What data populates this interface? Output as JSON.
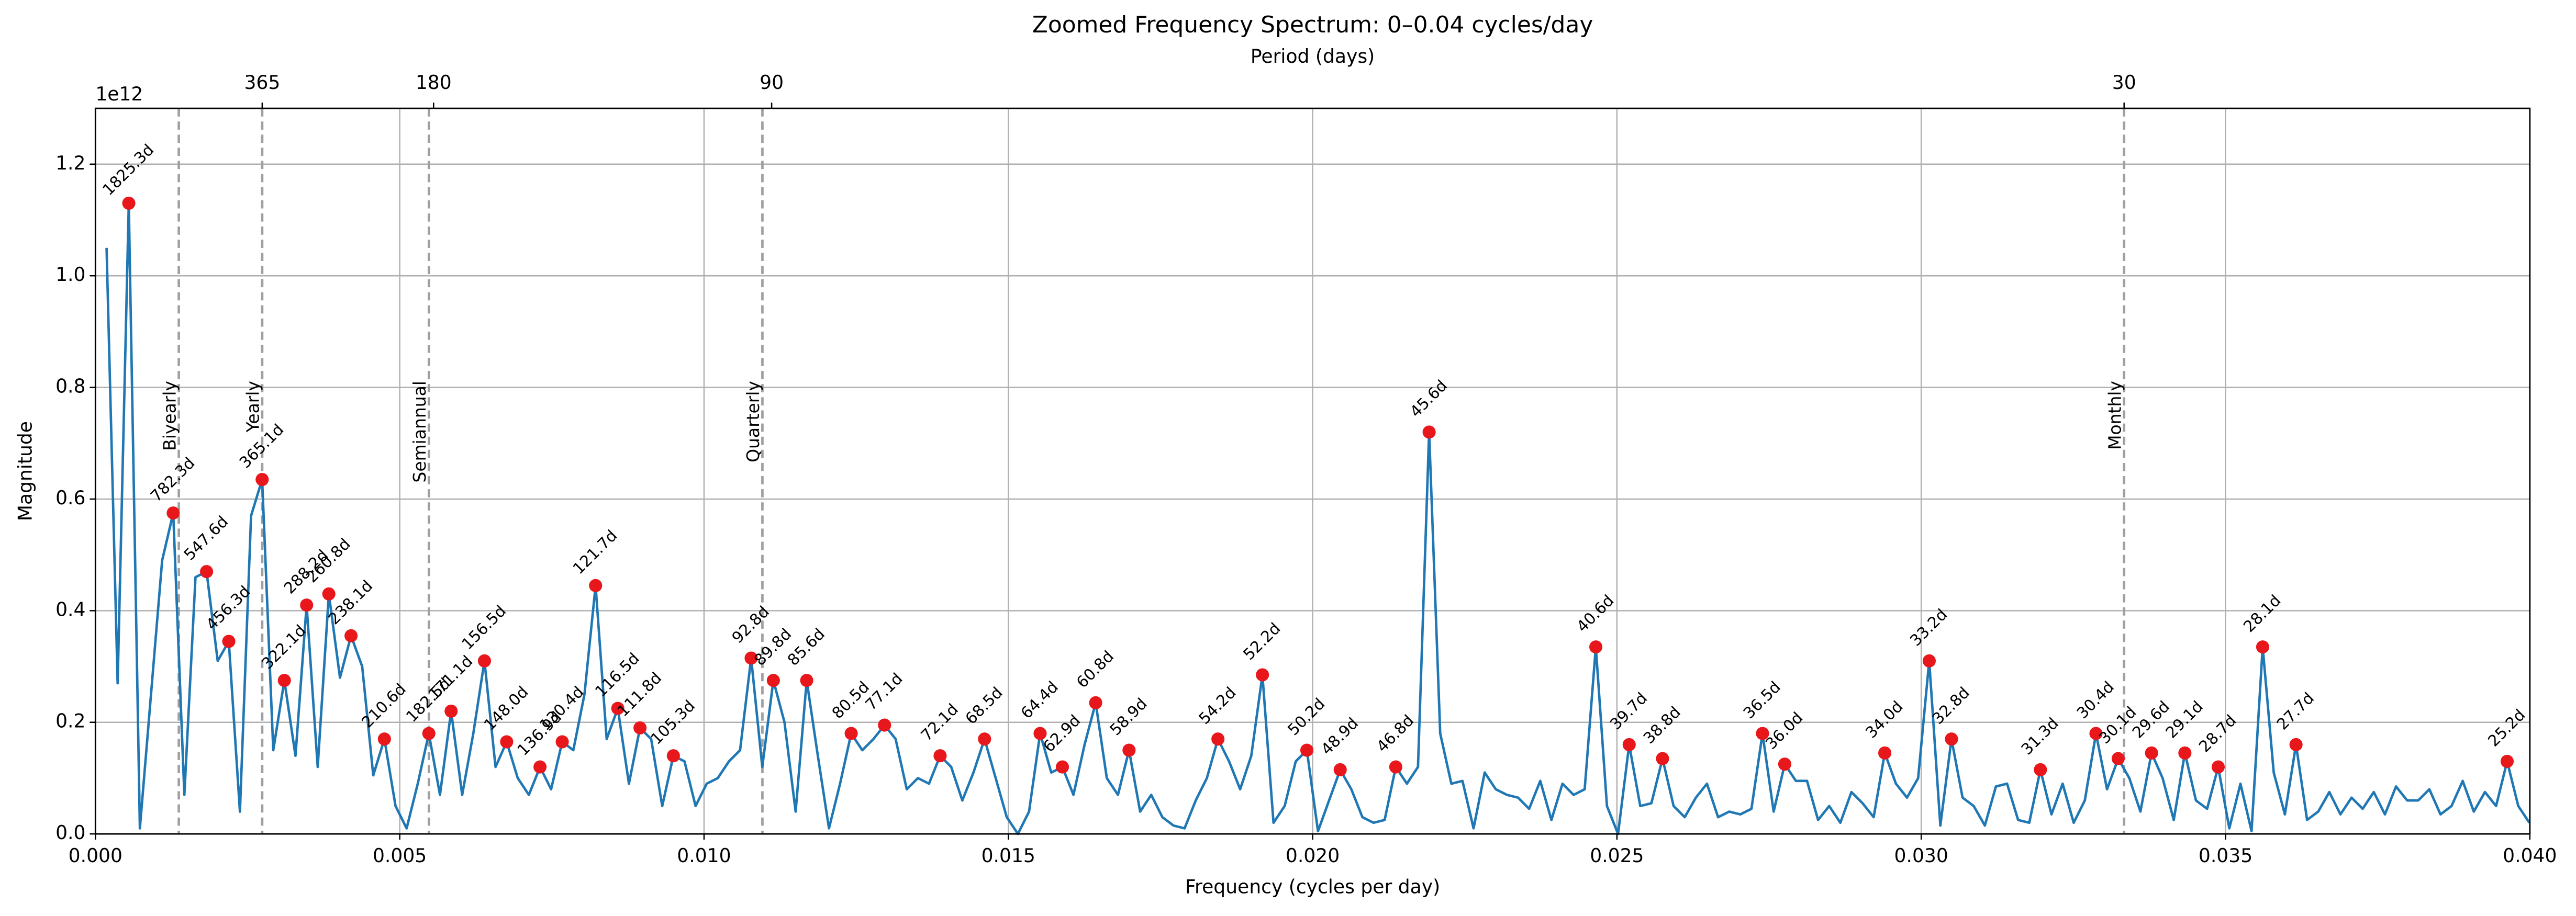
{
  "chart_data": {
    "type": "line",
    "title": "Zoomed Frequency Spectrum: 0–0.04 cycles/day",
    "x_label": "Frequency (cycles per day)",
    "y_label": "Magnitude",
    "x2_label": "Period (days)",
    "offset_label": "1e12",
    "color": "#1f77b4",
    "grid": true,
    "xlim": [
      0,
      0.04
    ],
    "ylim": [
      0,
      1.3
    ],
    "xticks": [
      {
        "value": 0,
        "label": "0.000"
      },
      {
        "value": 0.005,
        "label": "0.005"
      },
      {
        "value": 0.01,
        "label": "0.010"
      },
      {
        "value": 0.015,
        "label": "0.015"
      },
      {
        "value": 0.02,
        "label": "0.020"
      },
      {
        "value": 0.025,
        "label": "0.025"
      },
      {
        "value": 0.03,
        "label": "0.030"
      },
      {
        "value": 0.035,
        "label": "0.035"
      },
      {
        "value": 0.04,
        "label": "0.040"
      }
    ],
    "yticks": [
      {
        "value": 0,
        "label": "0.0"
      },
      {
        "value": 0.2,
        "label": "0.2"
      },
      {
        "value": 0.4,
        "label": "0.4"
      },
      {
        "value": 0.6,
        "label": "0.6"
      },
      {
        "value": 0.8,
        "label": "0.8"
      },
      {
        "value": 1.0,
        "label": "1.0"
      },
      {
        "value": 1.2,
        "label": "1.2"
      }
    ],
    "x2ticks": [
      {
        "value": 0.00274,
        "label": "365"
      },
      {
        "value": 0.005556,
        "label": "180"
      },
      {
        "value": 0.011111,
        "label": "90"
      },
      {
        "value": 0.033333,
        "label": "30"
      }
    ],
    "reference_lines": [
      {
        "x": 0.00137,
        "label": "Biyearly"
      },
      {
        "x": 0.00274,
        "label": "Yearly"
      },
      {
        "x": 0.005479,
        "label": "Semiannual"
      },
      {
        "x": 0.010959,
        "label": "Quarterly"
      },
      {
        "x": 0.033333,
        "label": "Monthly"
      }
    ],
    "x": [
      0.000183,
      0.000365,
      0.000548,
      0.00073,
      0.000913,
      0.001096,
      0.001278,
      0.001461,
      0.001644,
      0.001826,
      0.002009,
      0.002191,
      0.002374,
      0.002557,
      0.002739,
      0.002922,
      0.003104,
      0.003287,
      0.00347,
      0.003652,
      0.003835,
      0.004018,
      0.0042,
      0.004383,
      0.004565,
      0.004748,
      0.004931,
      0.005113,
      0.005296,
      0.005478,
      0.005661,
      0.005844,
      0.006026,
      0.006209,
      0.006392,
      0.006574,
      0.006757,
      0.006939,
      0.007122,
      0.007305,
      0.007487,
      0.00767,
      0.007852,
      0.008035,
      0.008218,
      0.0084,
      0.008583,
      0.008766,
      0.008948,
      0.009131,
      0.009313,
      0.009496,
      0.009679,
      0.009861,
      0.010044,
      0.010226,
      0.010409,
      0.010592,
      0.010774,
      0.010957,
      0.011139,
      0.011322,
      0.011505,
      0.011687,
      0.01187,
      0.012053,
      0.012235,
      0.012418,
      0.0126,
      0.012783,
      0.012966,
      0.013148,
      0.013331,
      0.013514,
      0.013696,
      0.013879,
      0.014061,
      0.014244,
      0.014427,
      0.014609,
      0.014792,
      0.014974,
      0.015157,
      0.01534,
      0.015522,
      0.015705,
      0.015888,
      0.01607,
      0.016253,
      0.016435,
      0.016618,
      0.016801,
      0.016983,
      0.017166,
      0.017348,
      0.017531,
      0.017714,
      0.017896,
      0.018079,
      0.018262,
      0.018444,
      0.018627,
      0.018809,
      0.018992,
      0.019175,
      0.019357,
      0.01954,
      0.019722,
      0.019905,
      0.020088,
      0.02027,
      0.020453,
      0.020636,
      0.020818,
      0.021001,
      0.021183,
      0.021366,
      0.021549,
      0.021731,
      0.021914,
      0.022096,
      0.022279,
      0.022462,
      0.022644,
      0.022827,
      0.023009,
      0.023192,
      0.023375,
      0.023557,
      0.02374,
      0.023923,
      0.024105,
      0.024288,
      0.02447,
      0.024653,
      0.024836,
      0.025018,
      0.025201,
      0.025383,
      0.025566,
      0.025749,
      0.025931,
      0.026114,
      0.026297,
      0.026479,
      0.026662,
      0.026844,
      0.027027,
      0.02721,
      0.027392,
      0.027575,
      0.027757,
      0.02794,
      0.028123,
      0.028305,
      0.028488,
      0.028671,
      0.028853,
      0.029036,
      0.029218,
      0.029401,
      0.029584,
      0.029766,
      0.029949,
      0.030131,
      0.030314,
      0.030497,
      0.030679,
      0.030862,
      0.031045,
      0.031227,
      0.03141,
      0.031592,
      0.031775,
      0.031958,
      0.03214,
      0.032323,
      0.032505,
      0.032688,
      0.032871,
      0.033053,
      0.033236,
      0.033419,
      0.033601,
      0.033784,
      0.033966,
      0.034149,
      0.034332,
      0.034514,
      0.034697,
      0.034879,
      0.035062,
      0.035245,
      0.035427,
      0.03561,
      0.035792,
      0.035975,
      0.036158,
      0.03634,
      0.036523,
      0.036705,
      0.036888,
      0.037071,
      0.037253,
      0.037436,
      0.037619,
      0.037801,
      0.037984,
      0.038166,
      0.038349,
      0.038532,
      0.038714,
      0.038897,
      0.039079,
      0.039262,
      0.039445,
      0.039627,
      0.03981,
      0.039992
    ],
    "values": [
      1.05,
      0.27,
      1.13,
      0.01,
      0.25,
      0.49,
      0.575,
      0.07,
      0.46,
      0.47,
      0.31,
      0.345,
      0.04,
      0.57,
      0.635,
      0.15,
      0.275,
      0.14,
      0.41,
      0.12,
      0.43,
      0.28,
      0.355,
      0.3,
      0.105,
      0.17,
      0.05,
      0.01,
      0.09,
      0.18,
      0.07,
      0.22,
      0.07,
      0.18,
      0.31,
      0.12,
      0.165,
      0.1,
      0.07,
      0.12,
      0.08,
      0.165,
      0.15,
      0.25,
      0.445,
      0.17,
      0.225,
      0.09,
      0.19,
      0.17,
      0.05,
      0.14,
      0.13,
      0.05,
      0.09,
      0.1,
      0.13,
      0.15,
      0.315,
      0.12,
      0.275,
      0.2,
      0.04,
      0.275,
      0.14,
      0.01,
      0.09,
      0.18,
      0.15,
      0.17,
      0.195,
      0.17,
      0.08,
      0.1,
      0.09,
      0.14,
      0.12,
      0.06,
      0.11,
      0.17,
      0.1,
      0.03,
      0.0,
      0.04,
      0.18,
      0.11,
      0.12,
      0.07,
      0.16,
      0.235,
      0.1,
      0.07,
      0.15,
      0.04,
      0.07,
      0.03,
      0.015,
      0.01,
      0.06,
      0.1,
      0.17,
      0.13,
      0.08,
      0.14,
      0.285,
      0.02,
      0.05,
      0.13,
      0.15,
      0.005,
      0.06,
      0.115,
      0.08,
      0.03,
      0.02,
      0.025,
      0.12,
      0.09,
      0.12,
      0.72,
      0.18,
      0.09,
      0.095,
      0.01,
      0.11,
      0.08,
      0.07,
      0.065,
      0.045,
      0.095,
      0.025,
      0.09,
      0.07,
      0.08,
      0.335,
      0.05,
      0.0,
      0.16,
      0.05,
      0.055,
      0.135,
      0.05,
      0.03,
      0.065,
      0.09,
      0.03,
      0.04,
      0.035,
      0.045,
      0.18,
      0.04,
      0.125,
      0.095,
      0.095,
      0.025,
      0.05,
      0.02,
      0.075,
      0.055,
      0.03,
      0.145,
      0.09,
      0.065,
      0.1,
      0.31,
      0.015,
      0.17,
      0.065,
      0.05,
      0.015,
      0.085,
      0.09,
      0.025,
      0.02,
      0.115,
      0.035,
      0.09,
      0.02,
      0.06,
      0.18,
      0.08,
      0.135,
      0.1,
      0.04,
      0.145,
      0.1,
      0.025,
      0.145,
      0.06,
      0.045,
      0.12,
      0.01,
      0.09,
      0.005,
      0.335,
      0.11,
      0.035,
      0.16,
      0.025,
      0.04,
      0.075,
      0.035,
      0.065,
      0.045,
      0.075,
      0.035,
      0.085,
      0.06,
      0.06,
      0.08,
      0.035,
      0.05,
      0.095,
      0.04,
      0.075,
      0.05,
      0.13,
      0.05,
      0.02
    ],
    "peaks": {
      "color": "#e8171b",
      "x": [
        0.000548,
        0.001278,
        0.001826,
        0.002191,
        0.002739,
        0.003104,
        0.00347,
        0.003835,
        0.0042,
        0.004748,
        0.005478,
        0.005844,
        0.006392,
        0.006757,
        0.007305,
        0.00767,
        0.008218,
        0.008583,
        0.008948,
        0.009496,
        0.010774,
        0.011139,
        0.011687,
        0.012418,
        0.012966,
        0.013879,
        0.014609,
        0.015522,
        0.015888,
        0.016435,
        0.016983,
        0.018444,
        0.019175,
        0.019905,
        0.020453,
        0.021366,
        0.021914,
        0.024653,
        0.025201,
        0.025749,
        0.027392,
        0.027757,
        0.029401,
        0.030131,
        0.030497,
        0.031958,
        0.032871,
        0.033236,
        0.033784,
        0.034332,
        0.034879,
        0.03561,
        0.036158,
        0.039627
      ],
      "values": [
        1.13,
        0.575,
        0.47,
        0.345,
        0.635,
        0.275,
        0.41,
        0.43,
        0.355,
        0.17,
        0.18,
        0.22,
        0.31,
        0.165,
        0.12,
        0.165,
        0.445,
        0.225,
        0.19,
        0.14,
        0.315,
        0.275,
        0.275,
        0.18,
        0.195,
        0.14,
        0.17,
        0.18,
        0.12,
        0.235,
        0.15,
        0.17,
        0.285,
        0.15,
        0.115,
        0.12,
        0.72,
        0.335,
        0.16,
        0.135,
        0.18,
        0.125,
        0.145,
        0.31,
        0.17,
        0.115,
        0.18,
        0.135,
        0.145,
        0.145,
        0.12,
        0.335,
        0.16,
        0.13
      ],
      "labels": [
        "1825.3d",
        "782.3d",
        "547.6d",
        "456.3d",
        "365.1d",
        "322.1d",
        "288.2d",
        "260.8d",
        "238.1d",
        "210.6d",
        "182.5d",
        "171.1d",
        "156.5d",
        "148.0d",
        "136.9d",
        "130.4d",
        "121.7d",
        "116.5d",
        "111.8d",
        "105.3d",
        "92.8d",
        "89.8d",
        "85.6d",
        "80.5d",
        "77.1d",
        "72.1d",
        "68.5d",
        "64.4d",
        "62.9d",
        "60.8d",
        "58.9d",
        "54.2d",
        "52.2d",
        "50.2d",
        "48.9d",
        "46.8d",
        "45.6d",
        "40.6d",
        "39.7d",
        "38.8d",
        "36.5d",
        "36.0d",
        "34.0d",
        "33.2d",
        "32.8d",
        "31.3d",
        "30.4d",
        "30.1d",
        "29.6d",
        "29.1d",
        "28.7d",
        "28.1d",
        "27.7d",
        "25.2d"
      ]
    }
  }
}
